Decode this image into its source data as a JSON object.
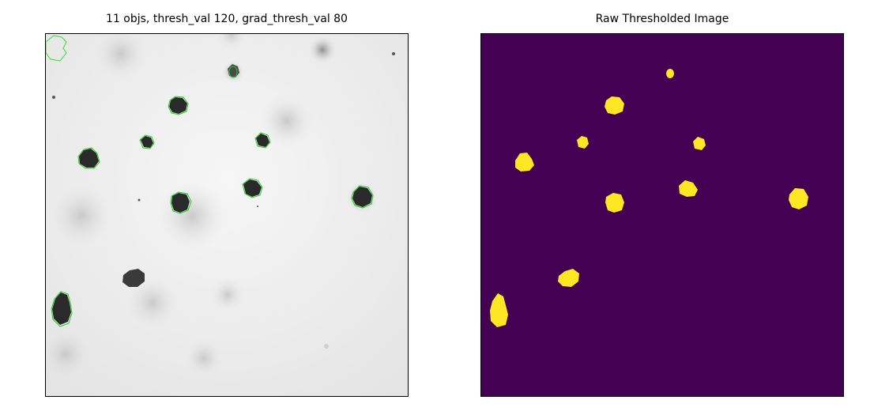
{
  "figure": {
    "left_title": "11 objs, thresh_val 120, grad_thresh_val 80",
    "right_title": "Raw Thresholded Image"
  },
  "colors": {
    "grayscale_background": "#efefef",
    "cell_dark": "#2b2b2b",
    "contour_green": "#22cc22",
    "mask_background": "#440154",
    "mask_foreground": "#fde725"
  }
}
